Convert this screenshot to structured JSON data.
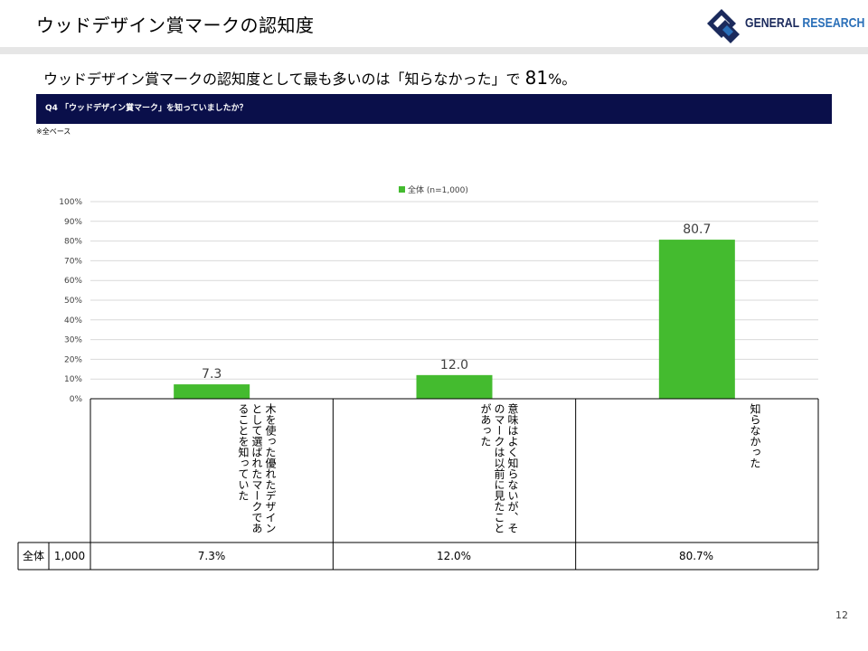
{
  "slide": {
    "title": "ウッドデザイン賞マークの認知度",
    "lead_text": "ウッドデザイン賞マークの認知度として最も多いのは「知らなかった」で",
    "lead_number": "81",
    "lead_suffix": "%。",
    "question": "Q4 「ウッドデザイン賞マーク」を知っていましたか？",
    "base_note": "※全ベース",
    "page_number": "12"
  },
  "logo": {
    "word1": "GENERAL",
    "word2": "RESEARCH",
    "icon": "diamond-logo-icon",
    "colors": {
      "navy": "#1b2a5c",
      "blue": "#2a6fb8"
    }
  },
  "chart_data": {
    "type": "bar",
    "categories": [
      "木を使った優れたデザインとして選ばれたマークであることを知っていた",
      "意味はよく知らないが、そのマークは以前に見たことがあった",
      "知らなかった"
    ],
    "series": [
      {
        "name": "全体 (n=1,000)",
        "values": [
          7.3,
          12.0,
          80.7
        ],
        "color": "#44bb2f"
      }
    ],
    "data_labels": [
      "7.3",
      "12.0",
      "80.7"
    ],
    "y_ticks": [
      "0%",
      "10%",
      "20%",
      "30%",
      "40%",
      "50%",
      "60%",
      "70%",
      "80%",
      "90%",
      "100%"
    ],
    "ylim": [
      0,
      100
    ],
    "grid": true,
    "legend_position": "top"
  },
  "table": {
    "row_label": "全体",
    "n": "1,000",
    "values": [
      "7.3%",
      "12.0%",
      "80.7%"
    ]
  }
}
